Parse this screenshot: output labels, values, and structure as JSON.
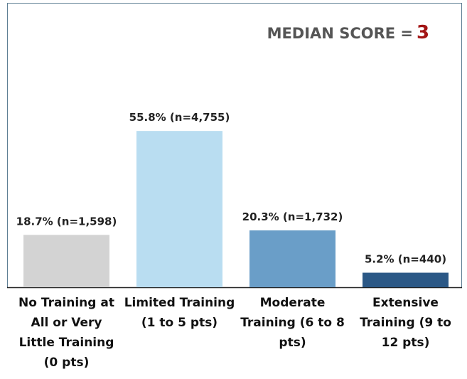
{
  "chart_data": {
    "type": "bar",
    "categories": [
      "No Training at All or Very Little Training (0 pts)",
      "Limited Training (1 to 5 pts)",
      "Moderate Training (6 to 8 pts)",
      "Extensive Training (9 to 12 pts)"
    ],
    "values": [
      18.7,
      55.8,
      20.3,
      5.2
    ],
    "value_labels": [
      "18.7% (n=1,598)",
      "55.8% (n=4,755)",
      "20.3% (n=1,732)",
      "5.2% (n=440)"
    ],
    "colors": [
      "#d3d3d3",
      "#b9ddf1",
      "#6a9ec8",
      "#2b5886"
    ],
    "annotation": {
      "label": "MEDIAN SCORE =",
      "value": 3
    }
  }
}
